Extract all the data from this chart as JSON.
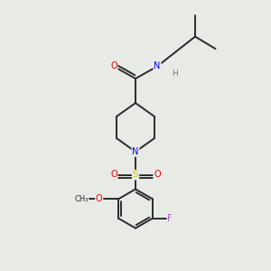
{
  "background_color": "#e8eae6",
  "atom_colors": {
    "C": "#2a2a2a",
    "N": "#0000ee",
    "O": "#ee0000",
    "S": "#cccc00",
    "F": "#bb55bb",
    "H": "#558888"
  },
  "bond_color": "#2a2a2a",
  "bond_width": 1.4,
  "title": ""
}
